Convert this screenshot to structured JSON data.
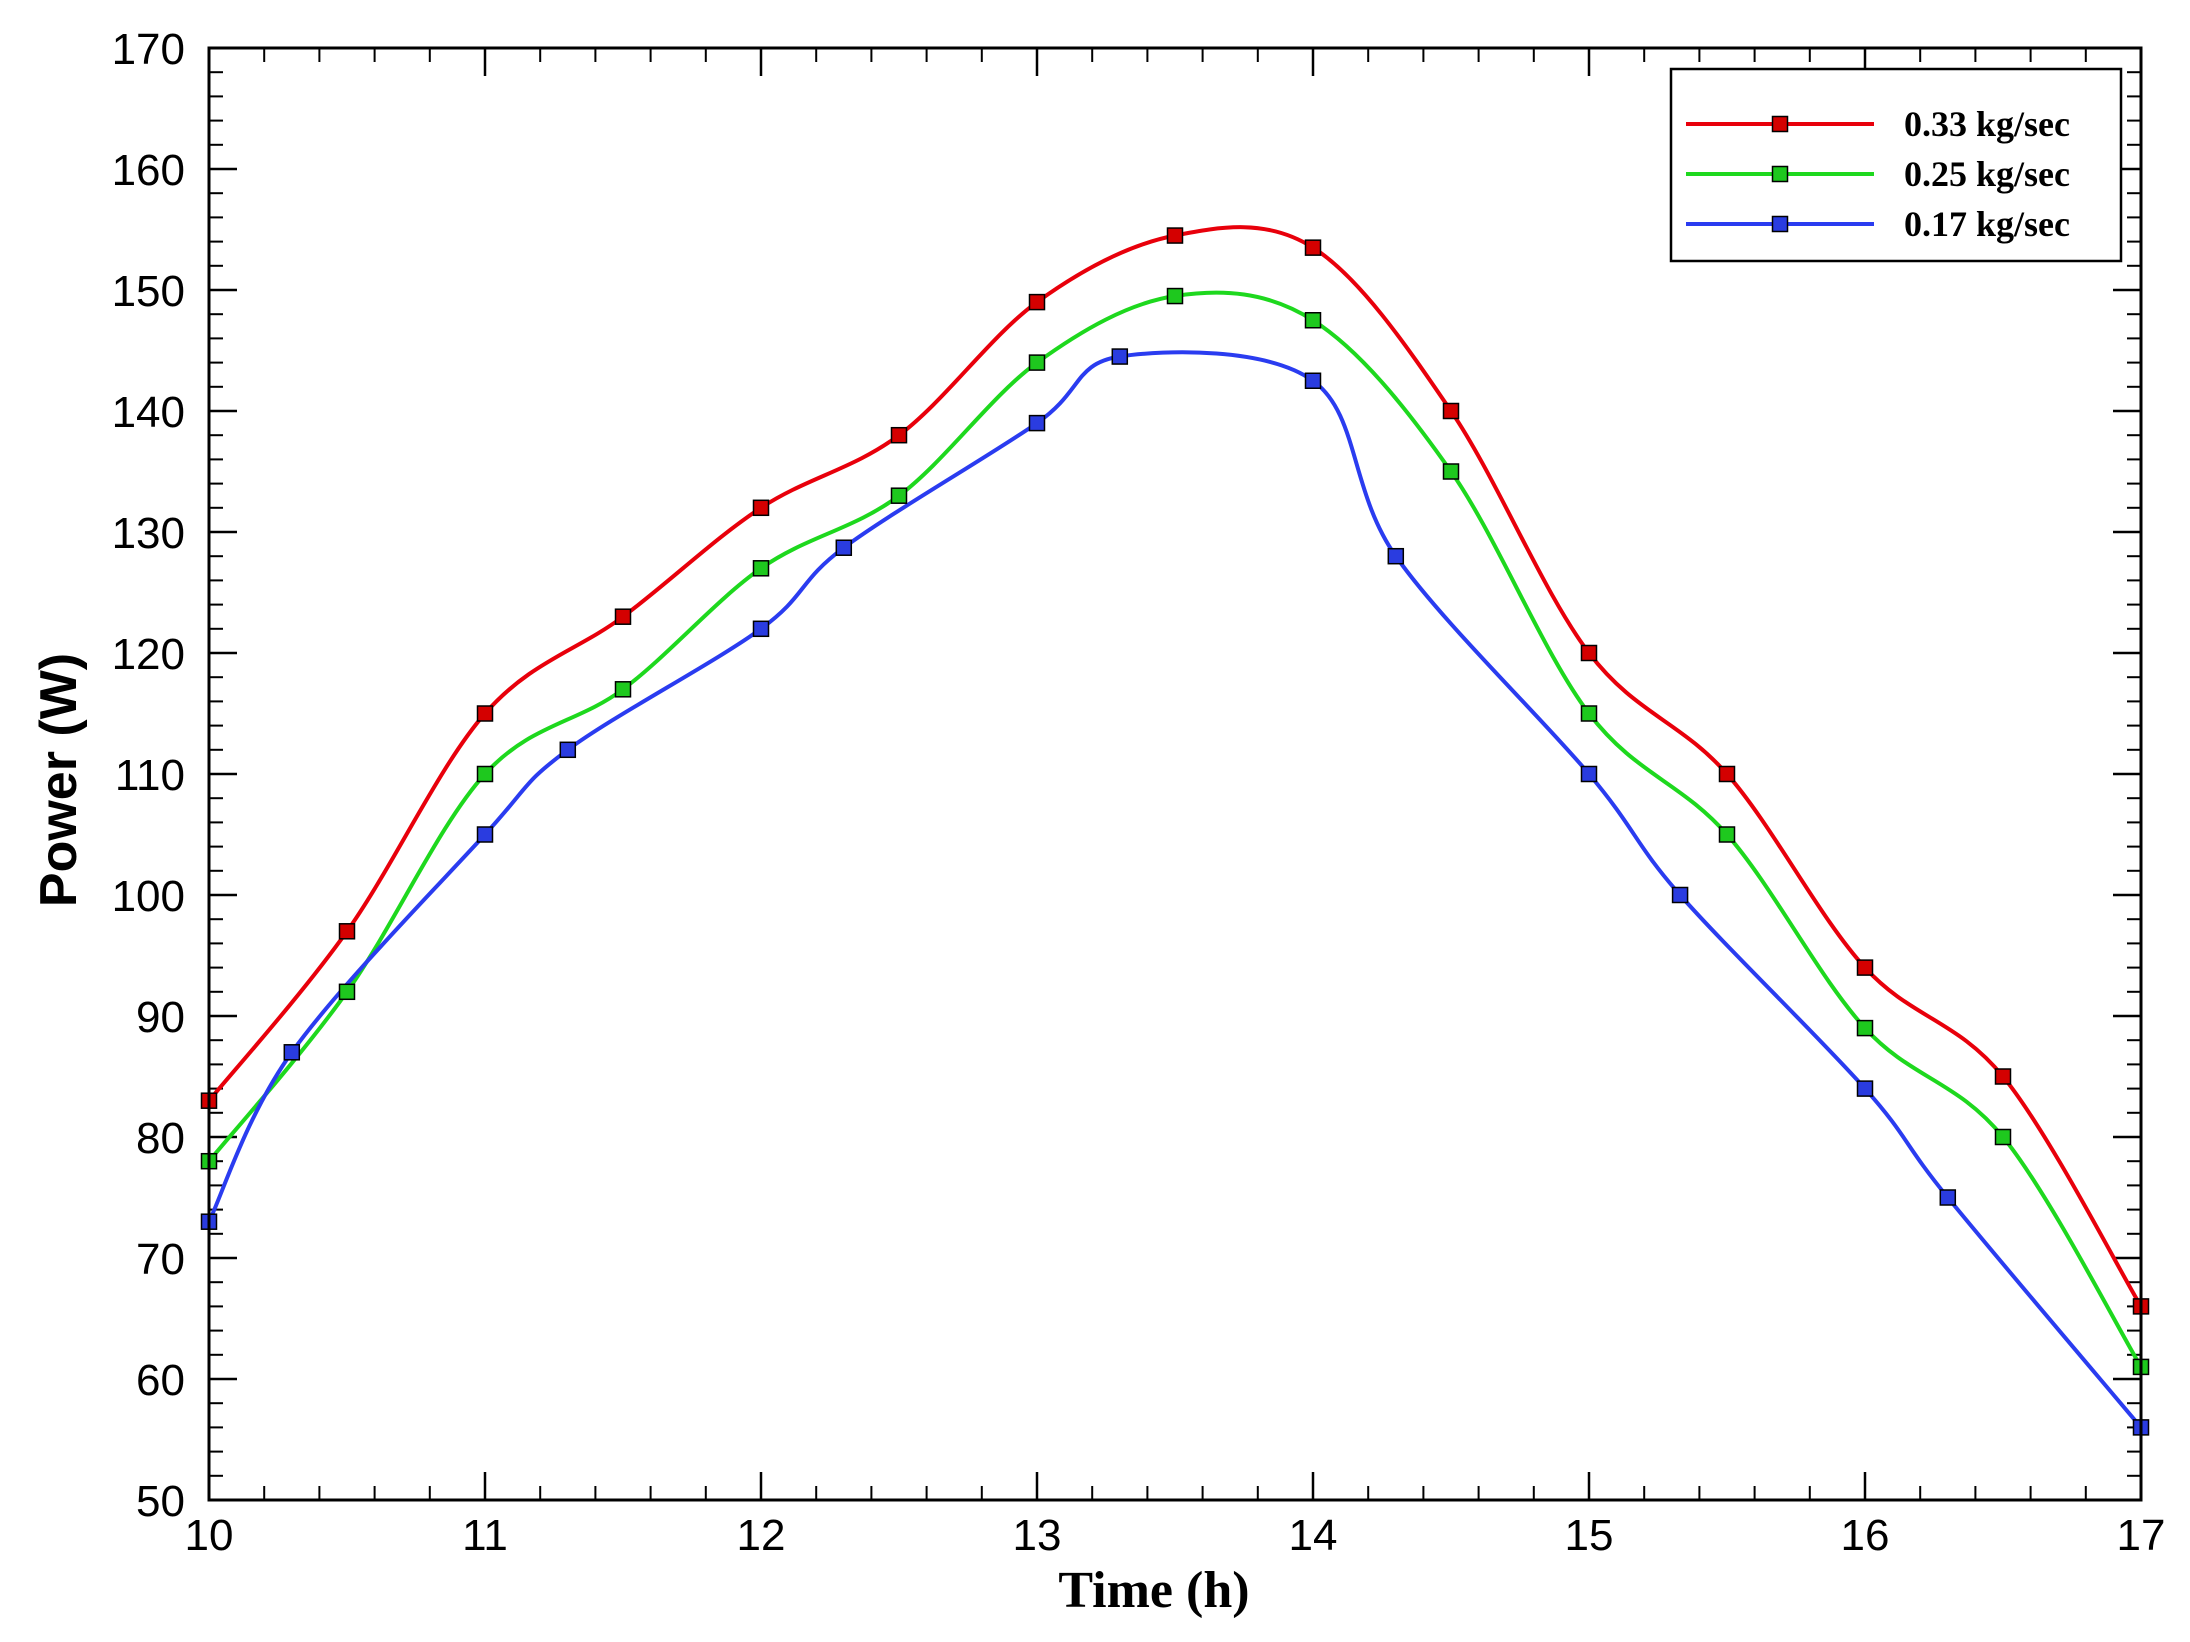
{
  "chart_data": {
    "type": "line",
    "title": "",
    "xlabel": "Time (h)",
    "ylabel": "Power (W)",
    "xlim": [
      10,
      17
    ],
    "ylim": [
      50,
      170
    ],
    "xticks": [
      10,
      11,
      12,
      13,
      14,
      15,
      16,
      17
    ],
    "yticks": [
      50,
      60,
      70,
      80,
      90,
      100,
      110,
      120,
      130,
      140,
      150,
      160,
      170
    ],
    "x_tick_labels": [
      "10",
      "11",
      "12",
      "13",
      "14",
      "15",
      "16",
      "17"
    ],
    "y_tick_labels": [
      "50",
      "60",
      "70",
      "80",
      "90",
      "100",
      "110",
      "120",
      "130",
      "140",
      "150",
      "160",
      "170"
    ],
    "x_minor_step": 0.2,
    "y_minor_step": 2,
    "grid": false,
    "legend_position": "top-right",
    "series": [
      {
        "name": "0.33 kg/sec",
        "color": "#e8000b",
        "marker_color": "#d40000",
        "x": [
          10,
          10.5,
          11,
          11.5,
          12,
          12.5,
          13,
          13.5,
          14,
          14.5,
          15,
          15.5,
          16,
          16.5,
          17
        ],
        "values": [
          83,
          97,
          115,
          123,
          132,
          138,
          149,
          154.5,
          153.5,
          140,
          120,
          110,
          94,
          85,
          66
        ]
      },
      {
        "name": "0.25 kg/sec",
        "color": "#1ed81e",
        "marker_color": "#1ec81e",
        "x": [
          10,
          10.5,
          11,
          11.5,
          12,
          12.5,
          13,
          13.5,
          14,
          14.5,
          15,
          15.5,
          16,
          16.5,
          17
        ],
        "values": [
          78,
          92,
          110,
          117,
          127,
          133,
          144,
          149.5,
          147.5,
          135,
          115,
          105,
          89,
          80,
          61
        ]
      },
      {
        "name": "0.17 kg/sec",
        "color": "#2a3cf0",
        "marker_color": "#2a3ce0",
        "x": [
          10,
          10.3,
          11,
          11.3,
          12,
          12.3,
          13,
          13.3,
          14,
          14.3,
          15,
          15.33,
          16,
          16.3,
          17
        ],
        "values": [
          73,
          87,
          105,
          112,
          122,
          128.7,
          139,
          144.5,
          142.5,
          128,
          110,
          100,
          84,
          75,
          56
        ]
      }
    ]
  }
}
